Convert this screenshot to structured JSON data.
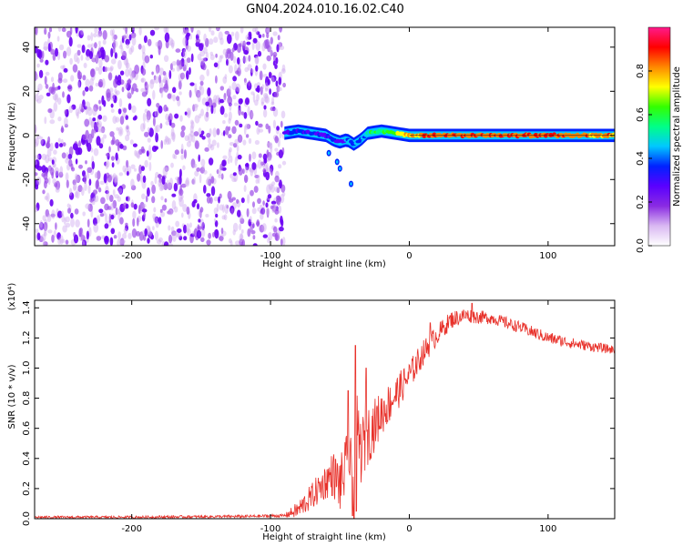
{
  "title": "GN04.2024.010.16.02.C40",
  "chart_data": [
    {
      "type": "heatmap",
      "xlabel": "Height of straight line (km)",
      "ylabel": "Frequency (Hz)",
      "xlim": [
        -270,
        148
      ],
      "ylim": [
        -50,
        49
      ],
      "x_ticks": [
        -200,
        -100,
        0,
        100
      ],
      "y_ticks": [
        -40,
        -20,
        0,
        20,
        40
      ],
      "colorbar": {
        "label": "Normalized spectral amplitude",
        "range": [
          0,
          1
        ],
        "ticks": [
          0.0,
          0.2,
          0.4,
          0.6,
          0.8
        ],
        "colors": [
          "#ffffff",
          "#d9b8f2",
          "#8a2be2",
          "#5a00ff",
          "#0022ff",
          "#00c8ff",
          "#00ff88",
          "#33ff00",
          "#ffff00",
          "#ff8800",
          "#ff0000",
          "#ff1a8c"
        ]
      },
      "noise_region": {
        "x_range": [
          -270,
          -90
        ],
        "freq_range": [
          -50,
          49
        ],
        "amplitude": 0.15
      },
      "signal_trace": {
        "x": [
          -90,
          -80,
          -70,
          -60,
          -55,
          -50,
          -45,
          -40,
          -35,
          -30,
          -20,
          -10,
          0,
          20,
          50,
          100,
          148
        ],
        "freq": [
          1,
          2,
          1,
          0,
          -2,
          -3,
          -2,
          -4,
          -2,
          1,
          2,
          1,
          0,
          0,
          0,
          0,
          0
        ],
        "amplitude": [
          0.3,
          0.35,
          0.3,
          0.3,
          0.35,
          0.3,
          0.35,
          0.4,
          0.4,
          0.5,
          0.6,
          0.7,
          0.8,
          0.85,
          0.85,
          0.85,
          0.8
        ]
      },
      "artifact_points": [
        {
          "x": -52,
          "freq": -12
        },
        {
          "x": -50,
          "freq": -15
        },
        {
          "x": -42,
          "freq": -22
        },
        {
          "x": -58,
          "freq": -8
        }
      ]
    },
    {
      "type": "line",
      "xlabel": "Height of straight line (km)",
      "ylabel": "SNR (10 * v/v)",
      "y_multiplier": "(x10⁴)",
      "xlim": [
        -270,
        148
      ],
      "ylim": [
        0,
        1.45
      ],
      "x_ticks": [
        -200,
        -100,
        0,
        100
      ],
      "y_ticks": [
        0.0,
        0.2,
        0.4,
        0.6,
        0.8,
        1.0,
        1.2,
        1.4
      ],
      "color": "#e8312a",
      "envelope": {
        "x": [
          -270,
          -200,
          -120,
          -90,
          -80,
          -70,
          -60,
          -55,
          -50,
          -45,
          -42,
          -40,
          -38,
          -35,
          -30,
          -20,
          -10,
          0,
          10,
          20,
          30,
          40,
          60,
          80,
          100,
          120,
          148
        ],
        "y": [
          0.01,
          0.01,
          0.015,
          0.02,
          0.06,
          0.15,
          0.25,
          0.3,
          0.22,
          0.35,
          0.3,
          0.5,
          0.6,
          0.45,
          0.55,
          0.7,
          0.82,
          0.95,
          1.1,
          1.22,
          1.32,
          1.35,
          1.33,
          1.27,
          1.2,
          1.16,
          1.12
        ]
      },
      "noise_amplitude": {
        "x": [
          -270,
          -90,
          -80,
          -60,
          -40,
          -20,
          0,
          20,
          40,
          60,
          100,
          148
        ],
        "a": [
          0.008,
          0.01,
          0.06,
          0.12,
          0.25,
          0.15,
          0.1,
          0.07,
          0.05,
          0.04,
          0.04,
          0.03
        ]
      },
      "spikes": [
        {
          "x": -40,
          "y": 0.0
        },
        {
          "x": -39,
          "y": 1.15
        },
        {
          "x": -38,
          "y": 0.05
        },
        {
          "x": -31,
          "y": 1.0
        },
        {
          "x": -44,
          "y": 0.85
        },
        {
          "x": -41,
          "y": 0.02
        },
        {
          "x": 15,
          "y": 1.3
        },
        {
          "x": 45,
          "y": 1.43
        }
      ]
    }
  ]
}
